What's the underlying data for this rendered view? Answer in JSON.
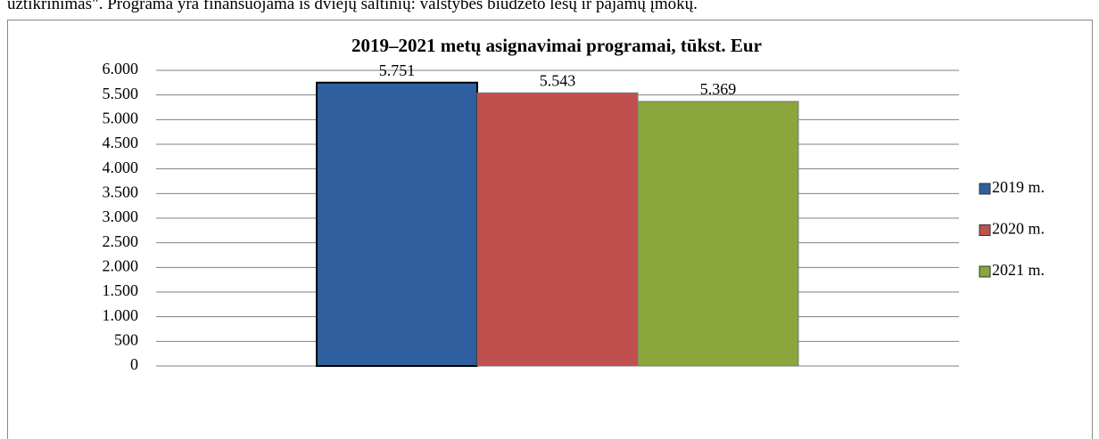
{
  "page_text": "užtikrinimas\". Programa yra finansuojama iš dviejų šaltinių: valstybės biudžeto lėšų ir pajamų įmokų.",
  "chart_data": {
    "type": "bar",
    "title": "2019–2021 metų asignavimai programai, tūkst. Eur",
    "categories": [
      null
    ],
    "series": [
      {
        "name": "2019 m.",
        "color": "#2f5f9e",
        "values": [
          5751
        ],
        "value_labels": [
          "5.751"
        ]
      },
      {
        "name": "2020 m.",
        "color": "#c0504d",
        "values": [
          5543
        ],
        "value_labels": [
          "5.543"
        ]
      },
      {
        "name": "2021 m.",
        "color": "#8aa63c",
        "values": [
          5369
        ],
        "value_labels": [
          "5.369"
        ]
      }
    ],
    "ylim": [
      0,
      6000
    ],
    "yticks": [
      0,
      500,
      {
        "value": 1000,
        "label": "1.000"
      },
      {
        "value": 1500,
        "label": "1.500"
      },
      {
        "value": 2000,
        "label": "2.000"
      },
      {
        "value": 2500,
        "label": "2.500"
      },
      {
        "value": 3000,
        "label": "3.000"
      },
      {
        "value": 3500,
        "label": "3.500"
      },
      {
        "value": 4000,
        "label": "4.000"
      },
      {
        "value": 4500,
        "label": "4.500"
      },
      {
        "value": 5000,
        "label": "5.000"
      },
      {
        "value": 5500,
        "label": "5.500"
      },
      {
        "value": 6000,
        "label": "6.000"
      }
    ],
    "grid": true,
    "legend": "right"
  }
}
